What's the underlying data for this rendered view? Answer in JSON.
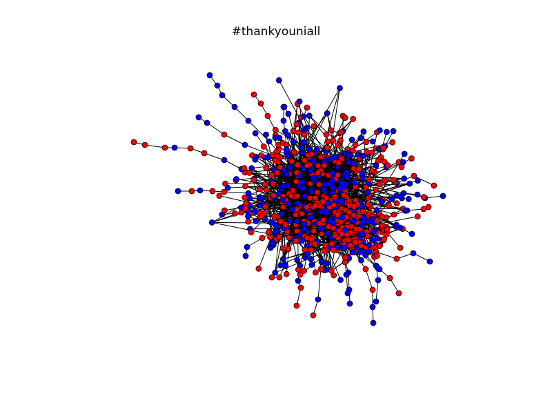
{
  "figure": {
    "title": "#thankyouniall"
  },
  "graph": {
    "type": "network",
    "legend": "none",
    "node_colors": {
      "red": "#ff0000",
      "blue": "#0000ff"
    },
    "edge_color": "#000000",
    "node_outline_color": "#000000"
  }
}
